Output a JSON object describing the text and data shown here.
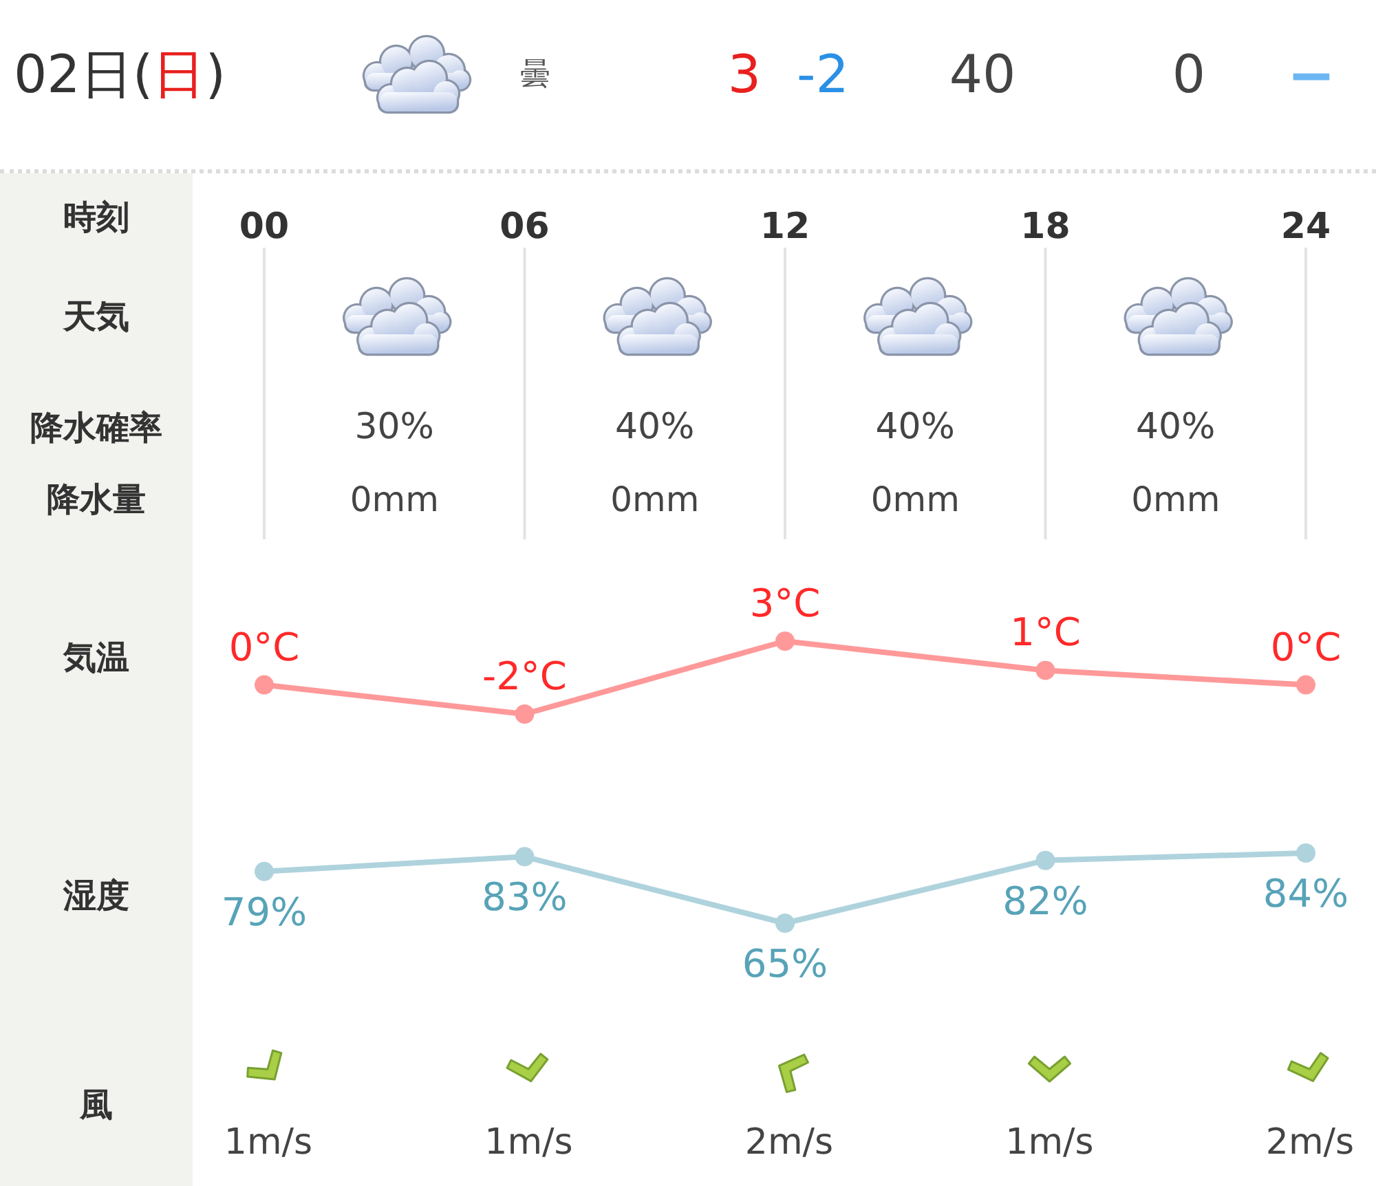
{
  "chart_data": [
    {
      "type": "line",
      "xlabel": "時刻",
      "x": [
        0,
        6,
        12,
        18,
        24
      ],
      "xlim": [
        0,
        24
      ],
      "xticks": [
        {
          "value": 0,
          "label": "00"
        },
        {
          "value": 6,
          "label": "06"
        },
        {
          "value": 12,
          "label": "12"
        },
        {
          "value": 18,
          "label": "18"
        },
        {
          "value": 24,
          "label": "24"
        }
      ],
      "tick_labels": "x",
      "grid": "x",
      "marker": "circle",
      "series": [
        {
          "name": "気温",
          "color": "#ff9999",
          "values": [
            0,
            -2,
            3,
            1,
            0
          ],
          "value_labels": [
            "0°C",
            "-2°C",
            "3°C",
            "1°C",
            "0°C"
          ]
        }
      ],
      "annotations": [
        "02日(日)",
        "曇",
        "3",
        "-2",
        "40",
        "0",
        "−",
        "天気",
        "降水確率",
        "降水量",
        "30%",
        "40%",
        "40%",
        "40%",
        "0mm",
        "0mm",
        "0mm",
        "0mm"
      ]
    },
    {
      "type": "line",
      "x": [
        0,
        6,
        12,
        18,
        24
      ],
      "xlim": [
        0,
        24
      ],
      "tick_labels": false,
      "marker": "circle",
      "series": [
        {
          "name": "湿度",
          "color": "#afd3dd",
          "values": [
            79,
            83,
            65,
            82,
            84
          ],
          "value_labels": [
            "79%",
            "83%",
            "65%",
            "82%",
            "84%"
          ]
        }
      ],
      "annotations": [
        "風",
        "1m/s",
        "1m/s",
        "2m/s",
        "1m/s",
        "2m/s"
      ]
    }
  ]
}
